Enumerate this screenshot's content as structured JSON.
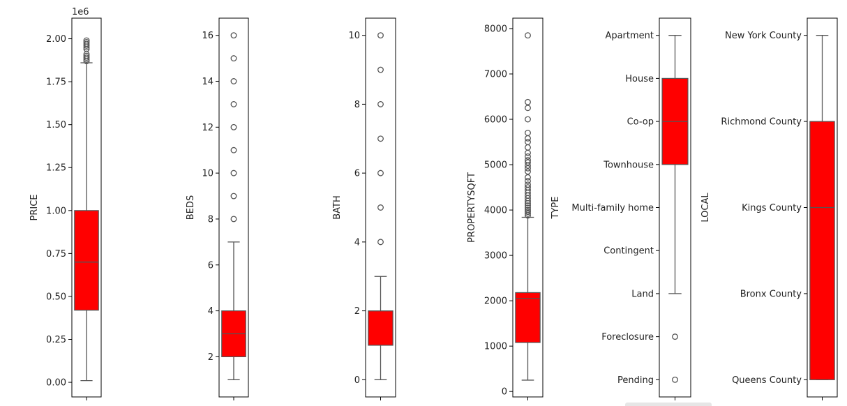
{
  "colors": {
    "box_fill": "#ff0000",
    "line": "#555555",
    "frame": "#000000",
    "background": "#ffffff"
  },
  "chart_data": [
    {
      "type": "box",
      "ylabel": "PRICE",
      "scale_label": "1e6",
      "ylim": [
        -0.085,
        2.12
      ],
      "ticks": [
        0,
        0.25,
        0.5,
        0.75,
        1.0,
        1.25,
        1.5,
        1.75,
        2.0
      ],
      "tick_labels": [
        "0.00",
        "0.25",
        "0.50",
        "0.75",
        "1.00",
        "1.25",
        "1.50",
        "1.75",
        "2.00"
      ],
      "box": {
        "whisker_low": 0.01,
        "q1": 0.42,
        "median": 0.7,
        "q3": 1.0,
        "whisker_high": 1.86
      },
      "outliers": [
        1.87,
        1.88,
        1.89,
        1.9,
        1.91,
        1.94,
        1.95,
        1.96,
        1.97,
        1.98,
        1.99
      ]
    },
    {
      "type": "box",
      "ylabel": "BEDS",
      "ylim": [
        0.25,
        16.75
      ],
      "ticks": [
        2,
        4,
        6,
        8,
        10,
        12,
        14,
        16
      ],
      "tick_labels": [
        "2",
        "4",
        "6",
        "8",
        "10",
        "12",
        "14",
        "16"
      ],
      "box": {
        "whisker_low": 1,
        "q1": 2,
        "median": 3,
        "q3": 4,
        "whisker_high": 7
      },
      "outliers": [
        8,
        9,
        10,
        11,
        12,
        13,
        14,
        15,
        16
      ]
    },
    {
      "type": "box",
      "ylabel": "BATH",
      "ylim": [
        -0.5,
        10.5
      ],
      "ticks": [
        0,
        2,
        4,
        6,
        8,
        10
      ],
      "tick_labels": [
        "0",
        "2",
        "4",
        "6",
        "8",
        "10"
      ],
      "box": {
        "whisker_low": 0,
        "q1": 1,
        "median": 2,
        "q3": 2,
        "whisker_high": 3
      },
      "outliers": [
        4,
        5,
        6,
        7,
        8,
        9,
        10
      ]
    },
    {
      "type": "box",
      "ylabel": "PROPERTYSQFT",
      "ylim": [
        -120,
        8230
      ],
      "ticks": [
        0,
        1000,
        2000,
        3000,
        4000,
        5000,
        6000,
        7000,
        8000
      ],
      "tick_labels": [
        "0",
        "1000",
        "2000",
        "3000",
        "4000",
        "5000",
        "6000",
        "7000",
        "8000"
      ],
      "box": {
        "whisker_low": 250,
        "q1": 1080,
        "median": 2050,
        "q3": 2180,
        "whisker_high": 3840
      },
      "outliers": [
        3880,
        3920,
        3960,
        4000,
        4050,
        4100,
        4150,
        4200,
        4260,
        4320,
        4380,
        4440,
        4500,
        4560,
        4640,
        4720,
        4850,
        4920,
        4980,
        5050,
        5100,
        5180,
        5260,
        5380,
        5500,
        5580,
        5700,
        6000,
        6250,
        6380,
        7850
      ]
    },
    {
      "type": "box",
      "ylabel": "TYPE",
      "categorical": true,
      "ylim": [
        -0.4,
        8.4
      ],
      "inverted": true,
      "ticks": [
        0,
        1,
        2,
        3,
        4,
        5,
        6,
        7,
        8
      ],
      "tick_labels": [
        "Apartment",
        "House",
        "Co-op",
        "Townhouse",
        "Multi-family home",
        "Contingent",
        "Land",
        "Foreclosure",
        "Pending"
      ],
      "box": {
        "whisker_low": 0,
        "q1": 1,
        "median": 2,
        "q3": 3,
        "whisker_high": 6
      },
      "outliers": [
        7,
        8
      ]
    },
    {
      "type": "box",
      "ylabel": "LOCAL",
      "categorical": true,
      "ylim": [
        -0.4,
        8.4
      ],
      "inverted": true,
      "ticks": [
        0,
        2,
        4,
        6,
        8
      ],
      "tick_labels": [
        "New York County",
        "Richmond County",
        "Kings County",
        "Bronx County",
        "Queens County"
      ],
      "box": {
        "whisker_low": 0,
        "q1": 2,
        "median": 4,
        "q3": 8,
        "whisker_high": 8
      },
      "outliers": []
    }
  ]
}
